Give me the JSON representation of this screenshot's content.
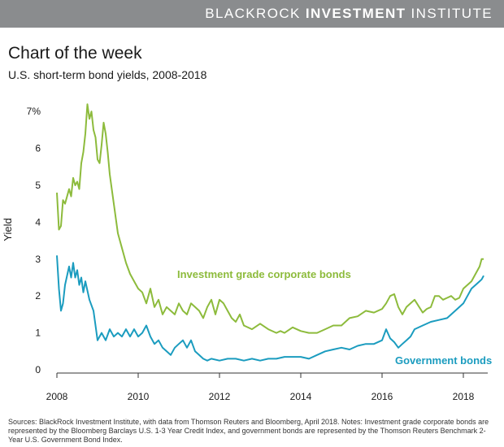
{
  "header": {
    "brand_light": "BLACKROCK ",
    "brand_bold": "INVESTMENT",
    "brand_tail": " INSTITUTE"
  },
  "title": "Chart of the week",
  "subtitle": "U.S. short-term bond yields, 2008-2018",
  "source": "Sources: BlackRock Investment Institute, with data from Thomson Reuters and Bloomberg, April 2018.    Notes: Investment grade corporate bonds are represented by the Bloomberg Barclays U.S. 1-3 Year Credit Index, and government bonds are represented by the Thomson Reuters Benchmark 2-Year U.S. Government Bond Index.",
  "colors": {
    "corporate": "#8dbb3c",
    "government": "#1b9cbf",
    "axis": "#333333"
  },
  "chart_data": {
    "type": "line",
    "ylabel": "Yield",
    "xlim": [
      2008,
      2018.6
    ],
    "ylim": [
      0,
      7.6
    ],
    "xticks": [
      "2008",
      "2010",
      "2012",
      "2014",
      "2016",
      "2018"
    ],
    "yticks": [
      "0",
      "1",
      "2",
      "3",
      "4",
      "5",
      "6",
      "7%"
    ],
    "grid": false,
    "series": [
      {
        "name": "Investment grade corporate bonds",
        "color": "#8dbb3c",
        "x": [
          2008.0,
          2008.05,
          2008.1,
          2008.15,
          2008.2,
          2008.3,
          2008.35,
          2008.4,
          2008.45,
          2008.5,
          2008.55,
          2008.6,
          2008.65,
          2008.7,
          2008.75,
          2008.8,
          2008.85,
          2008.9,
          2008.95,
          2009.0,
          2009.05,
          2009.1,
          2009.15,
          2009.2,
          2009.25,
          2009.3,
          2009.35,
          2009.4,
          2009.45,
          2009.5,
          2009.6,
          2009.7,
          2009.8,
          2009.9,
          2010.0,
          2010.1,
          2010.2,
          2010.3,
          2010.4,
          2010.5,
          2010.6,
          2010.7,
          2010.8,
          2010.9,
          2011.0,
          2011.1,
          2011.2,
          2011.3,
          2011.4,
          2011.5,
          2011.6,
          2011.7,
          2011.8,
          2011.9,
          2012.0,
          2012.1,
          2012.2,
          2012.3,
          2012.4,
          2012.5,
          2012.6,
          2012.8,
          2013.0,
          2013.2,
          2013.4,
          2013.5,
          2013.6,
          2013.8,
          2014.0,
          2014.2,
          2014.4,
          2014.6,
          2014.8,
          2015.0,
          2015.2,
          2015.4,
          2015.6,
          2015.8,
          2016.0,
          2016.1,
          2016.2,
          2016.3,
          2016.4,
          2016.5,
          2016.6,
          2016.7,
          2016.8,
          2017.0,
          2017.1,
          2017.2,
          2017.3,
          2017.4,
          2017.5,
          2017.6,
          2017.7,
          2017.8,
          2017.9,
          2018.0,
          2018.1,
          2018.2,
          2018.3,
          2018.4,
          2018.45,
          2018.5
        ],
        "values": [
          4.8,
          3.8,
          3.9,
          4.6,
          4.5,
          4.9,
          4.7,
          5.2,
          5.0,
          5.1,
          4.9,
          5.6,
          5.9,
          6.4,
          7.2,
          6.8,
          7.0,
          6.5,
          6.3,
          5.7,
          5.6,
          6.1,
          6.7,
          6.4,
          5.9,
          5.3,
          4.9,
          4.5,
          4.1,
          3.7,
          3.3,
          2.9,
          2.6,
          2.4,
          2.2,
          2.1,
          1.8,
          2.2,
          1.7,
          1.9,
          1.5,
          1.7,
          1.6,
          1.5,
          1.8,
          1.6,
          1.5,
          1.8,
          1.7,
          1.6,
          1.4,
          1.7,
          1.9,
          1.5,
          1.9,
          1.8,
          1.6,
          1.4,
          1.3,
          1.5,
          1.2,
          1.1,
          1.25,
          1.1,
          1.0,
          1.05,
          1.0,
          1.15,
          1.05,
          1.0,
          1.0,
          1.1,
          1.2,
          1.2,
          1.4,
          1.45,
          1.6,
          1.55,
          1.65,
          1.8,
          2.0,
          2.05,
          1.7,
          1.5,
          1.7,
          1.8,
          1.9,
          1.55,
          1.65,
          1.7,
          2.0,
          2.0,
          1.9,
          1.95,
          2.0,
          1.9,
          1.95,
          2.2,
          2.3,
          2.4,
          2.6,
          2.8,
          3.0,
          3.0
        ]
      },
      {
        "name": "Government bonds",
        "color": "#1b9cbf",
        "x": [
          2008.0,
          2008.05,
          2008.1,
          2008.15,
          2008.2,
          2008.3,
          2008.35,
          2008.4,
          2008.45,
          2008.5,
          2008.55,
          2008.6,
          2008.65,
          2008.7,
          2008.8,
          2008.9,
          2008.95,
          2009.0,
          2009.1,
          2009.2,
          2009.3,
          2009.4,
          2009.5,
          2009.6,
          2009.7,
          2009.8,
          2009.9,
          2010.0,
          2010.1,
          2010.2,
          2010.3,
          2010.4,
          2010.5,
          2010.6,
          2010.7,
          2010.8,
          2010.9,
          2011.0,
          2011.1,
          2011.2,
          2011.3,
          2011.4,
          2011.5,
          2011.6,
          2011.7,
          2011.8,
          2012.0,
          2012.2,
          2012.4,
          2012.6,
          2012.8,
          2013.0,
          2013.2,
          2013.4,
          2013.6,
          2013.8,
          2014.0,
          2014.2,
          2014.4,
          2014.6,
          2014.8,
          2015.0,
          2015.2,
          2015.4,
          2015.6,
          2015.8,
          2016.0,
          2016.1,
          2016.2,
          2016.3,
          2016.4,
          2016.5,
          2016.6,
          2016.7,
          2016.8,
          2017.0,
          2017.2,
          2017.4,
          2017.6,
          2017.8,
          2018.0,
          2018.1,
          2018.2,
          2018.3,
          2018.4,
          2018.45,
          2018.5
        ],
        "values": [
          3.1,
          2.2,
          1.6,
          1.8,
          2.3,
          2.8,
          2.5,
          2.9,
          2.5,
          2.7,
          2.3,
          2.5,
          2.1,
          2.4,
          1.9,
          1.6,
          1.2,
          0.8,
          1.0,
          0.8,
          1.1,
          0.9,
          1.0,
          0.9,
          1.1,
          0.9,
          1.1,
          0.9,
          1.0,
          1.2,
          0.9,
          0.7,
          0.8,
          0.6,
          0.5,
          0.4,
          0.6,
          0.7,
          0.8,
          0.6,
          0.8,
          0.5,
          0.4,
          0.3,
          0.25,
          0.3,
          0.25,
          0.3,
          0.3,
          0.25,
          0.3,
          0.25,
          0.3,
          0.3,
          0.35,
          0.35,
          0.35,
          0.3,
          0.4,
          0.5,
          0.55,
          0.6,
          0.55,
          0.65,
          0.7,
          0.7,
          0.8,
          1.1,
          0.85,
          0.75,
          0.6,
          0.7,
          0.8,
          0.9,
          1.1,
          1.2,
          1.3,
          1.35,
          1.4,
          1.6,
          1.8,
          2.0,
          2.2,
          2.3,
          2.4,
          2.45,
          2.55
        ]
      }
    ]
  }
}
